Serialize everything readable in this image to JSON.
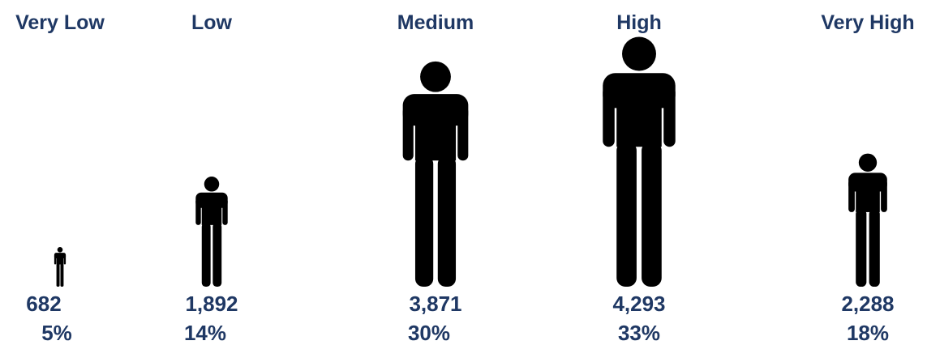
{
  "chart_data": {
    "type": "bar",
    "categories": [
      "Very Low",
      "Low",
      "Medium",
      "High",
      "Very High"
    ],
    "values": [
      682,
      1892,
      3871,
      4293,
      2288
    ],
    "count_labels": [
      "682",
      "1,892",
      "3,871",
      "4,293",
      "2,288"
    ],
    "percent_labels": [
      "5%",
      "14%",
      "30%",
      "33%",
      "18%"
    ],
    "title": "",
    "xlabel": "",
    "ylabel": "",
    "grid": false,
    "mark_icon": "person-icon",
    "colors": {
      "label": "#1f3864",
      "figure": "#000000"
    }
  }
}
